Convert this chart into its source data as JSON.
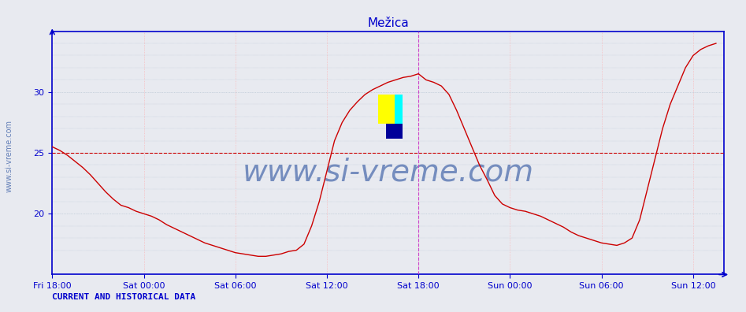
{
  "title": "Mežica",
  "ylabel": "",
  "xlabel": "",
  "bg_color": "#e8eaf0",
  "plot_bg_color": "#e8eaf0",
  "line_color": "#cc0000",
  "line_width": 1.0,
  "ylim": [
    15,
    35
  ],
  "yticks": [
    20,
    25,
    30
  ],
  "xlim_hours": [
    0,
    44
  ],
  "xtick_labels": [
    "Fri 18:00",
    "Sat 00:00",
    "Sat 06:00",
    "Sat 12:00",
    "Sat 18:00",
    "Sun 00:00",
    "Sun 06:00",
    "Sun 12:00"
  ],
  "xtick_positions": [
    0,
    6,
    12,
    18,
    24,
    30,
    36,
    42
  ],
  "hline_y": 25.0,
  "hline_color": "#cc0000",
  "vline_x": 24,
  "vline_color": "#cc44cc",
  "title_color": "#0000cc",
  "title_fontsize": 11,
  "axis_color": "#0000cc",
  "tick_color": "#0000cc",
  "tick_fontsize": 8,
  "watermark": "www.si-vreme.com",
  "watermark_color": "#4466aa",
  "watermark_fontsize": 28,
  "footer_text": "CURRENT AND HISTORICAL DATA",
  "footer_color": "#0000cc",
  "footer_fontsize": 8,
  "legend_color": "#cc0000",
  "sidebar_text": "www.si-vreme.com",
  "sidebar_color": "#4466aa",
  "sidebar_fontsize": 7,
  "yaxis_arrow": true,
  "xaxis_arrow": true,
  "grid_color_h": "#aabbcc",
  "grid_color_v": "#ffaaaa",
  "grid_style": ":",
  "data_hours": [
    0,
    0.5,
    1,
    1.5,
    2,
    2.5,
    3,
    3.5,
    4,
    4.5,
    5,
    5.5,
    6,
    6.5,
    7,
    7.5,
    8,
    8.5,
    9,
    9.5,
    10,
    10.5,
    11,
    11.5,
    12,
    12.5,
    13,
    13.5,
    14,
    14.5,
    15,
    15.5,
    16,
    16.5,
    17,
    17.5,
    18,
    18.5,
    19,
    19.5,
    20,
    20.5,
    21,
    21.5,
    22,
    22.5,
    23,
    23.5,
    24,
    24.5,
    25,
    25.5,
    26,
    26.5,
    27,
    27.5,
    28,
    28.5,
    29,
    29.5,
    30,
    30.5,
    31,
    31.5,
    32,
    32.5,
    33,
    33.5,
    34,
    34.5,
    35,
    35.5,
    36,
    36.5,
    37,
    37.5,
    38,
    38.5,
    39,
    39.5,
    40,
    40.5,
    41,
    41.5,
    42,
    42.5,
    43,
    43.5
  ],
  "data_temps": [
    25.5,
    25.2,
    24.8,
    24.3,
    23.8,
    23.2,
    22.5,
    21.8,
    21.2,
    20.7,
    20.5,
    20.2,
    20.0,
    19.8,
    19.5,
    19.1,
    18.8,
    18.5,
    18.2,
    17.9,
    17.6,
    17.4,
    17.2,
    17.0,
    16.8,
    16.7,
    16.6,
    16.5,
    16.5,
    16.6,
    16.7,
    16.9,
    17.0,
    17.5,
    19.0,
    21.0,
    23.5,
    26.0,
    27.5,
    28.5,
    29.2,
    29.8,
    30.2,
    30.5,
    30.8,
    31.0,
    31.2,
    31.3,
    31.5,
    31.0,
    30.8,
    30.5,
    29.8,
    28.5,
    27.0,
    25.5,
    24.0,
    22.8,
    21.5,
    20.8,
    20.5,
    20.3,
    20.2,
    20.0,
    19.8,
    19.5,
    19.2,
    18.9,
    18.5,
    18.2,
    18.0,
    17.8,
    17.6,
    17.5,
    17.4,
    17.6,
    18.0,
    19.5,
    22.0,
    24.5,
    27.0,
    29.0,
    30.5,
    32.0,
    33.0,
    33.5,
    33.8,
    34.0
  ]
}
